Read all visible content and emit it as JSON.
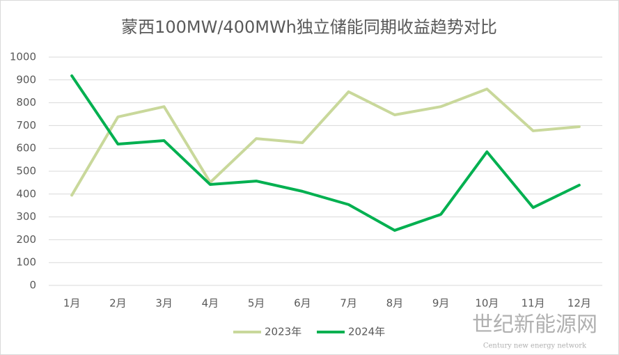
{
  "chart_data": {
    "type": "line",
    "title": "蒙西100MW/400MWh独立储能同期收益趋势对比",
    "categories": [
      "1月",
      "2月",
      "3月",
      "4月",
      "5月",
      "6月",
      "7月",
      "8月",
      "9月",
      "10月",
      "11月",
      "12月"
    ],
    "series": [
      {
        "name": "2023年",
        "color": "#c9d89b",
        "values": [
          395,
          738,
          783,
          451,
          643,
          625,
          848,
          747,
          783,
          860,
          677,
          695
        ]
      },
      {
        "name": "2024年",
        "color": "#00b050",
        "values": [
          918,
          619,
          634,
          442,
          457,
          412,
          354,
          241,
          311,
          585,
          341,
          439
        ]
      }
    ],
    "ylim": [
      0,
      1000
    ],
    "yticks": [
      0,
      100,
      200,
      300,
      400,
      500,
      600,
      700,
      800,
      900,
      1000
    ],
    "grid": true,
    "legend": "bottom",
    "watermark": [
      "世纪新能源网",
      "Century new energy network"
    ]
  }
}
